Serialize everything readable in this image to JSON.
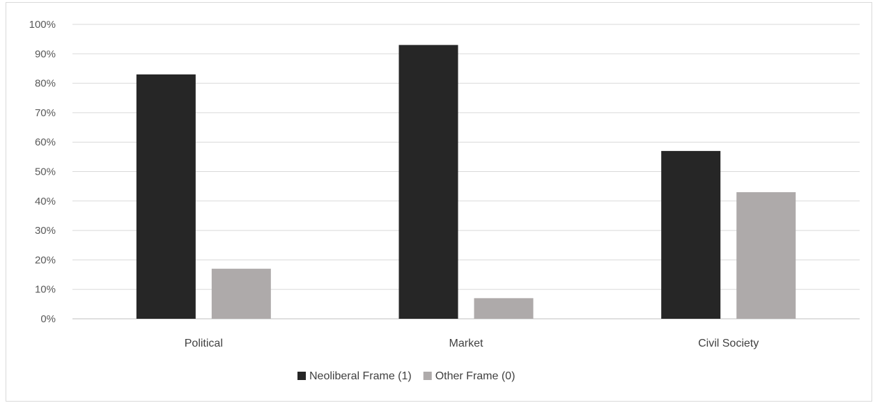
{
  "chart_data": {
    "type": "bar",
    "categories": [
      "Political",
      "Market",
      "Civil Society"
    ],
    "series": [
      {
        "name": "Neoliberal Frame (1)",
        "values": [
          83,
          93,
          57
        ],
        "color": "#262626"
      },
      {
        "name": "Other Frame (0)",
        "values": [
          17,
          7,
          43
        ],
        "color": "#aeaaaa"
      }
    ],
    "ylim": [
      0,
      100
    ],
    "yticks": [
      "0%",
      "10%",
      "20%",
      "30%",
      "40%",
      "50%",
      "60%",
      "70%",
      "80%",
      "90%",
      "100%"
    ],
    "grid": true,
    "legend_position": "bottom"
  }
}
